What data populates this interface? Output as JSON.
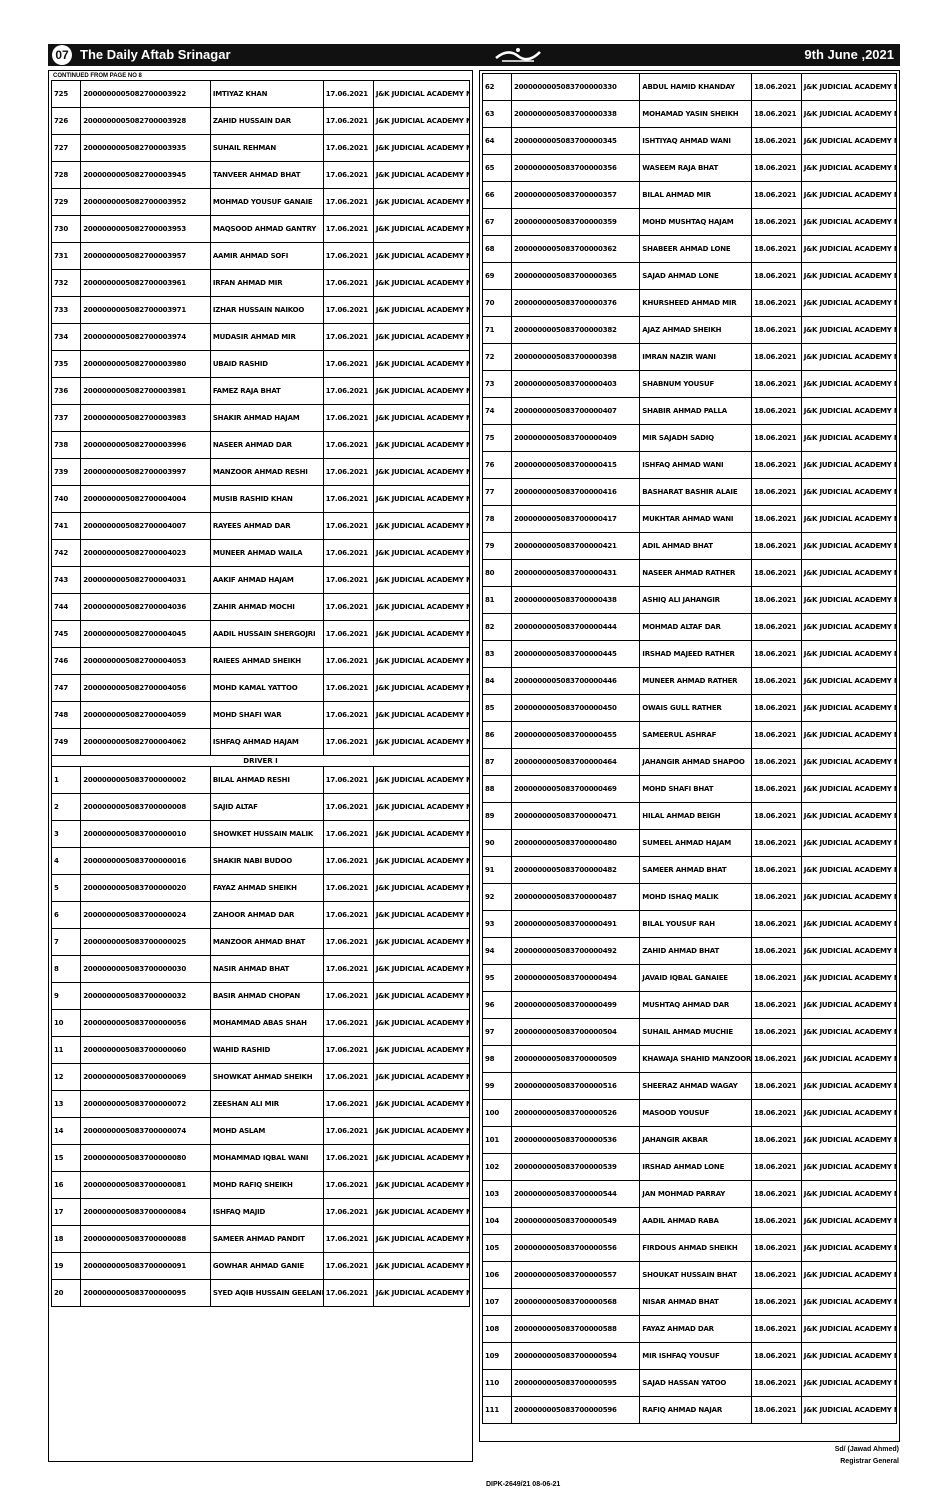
{
  "header": {
    "page_no": "07",
    "paper": "The Daily Aftab Srinagar",
    "date": "9th June ,2021"
  },
  "left": {
    "note": "CONTINUED FROM PAGE NO 8",
    "rows": [
      [
        "725",
        "2000000005082700003922",
        "IMTIYAZ KHAN",
        "17.06.2021",
        "J&K JUDICIAL ACADEMY MOMINABAD, SRINAGAR"
      ],
      [
        "726",
        "2000000005082700003928",
        "ZAHID HUSSAIN DAR",
        "17.06.2021",
        "J&K JUDICIAL ACADEMY MOMINABAD, SRINAGAR"
      ],
      [
        "727",
        "2000000005082700003935",
        "SUHAIL REHMAN",
        "17.06.2021",
        "J&K JUDICIAL ACADEMY MOMINABAD, SRINAGAR"
      ],
      [
        "728",
        "2000000005082700003945",
        "TANVEER AHMAD BHAT",
        "17.06.2021",
        "J&K JUDICIAL ACADEMY MOMINABAD, SRINAGAR"
      ],
      [
        "729",
        "2000000005082700003952",
        "MOHMAD YOUSUF GANAIE",
        "17.06.2021",
        "J&K JUDICIAL ACADEMY MOMINABAD, SRINAGAR"
      ],
      [
        "730",
        "2000000005082700003953",
        "MAQSOOD AHMAD GANTRY",
        "17.06.2021",
        "J&K JUDICIAL ACADEMY MOMINABAD, SRINAGAR"
      ],
      [
        "731",
        "2000000005082700003957",
        "AAMIR AHMAD SOFI",
        "17.06.2021",
        "J&K JUDICIAL ACADEMY MOMINABAD, SRINAGAR"
      ],
      [
        "732",
        "2000000005082700003961",
        "IRFAN AHMAD MIR",
        "17.06.2021",
        "J&K JUDICIAL ACADEMY MOMINABAD, SRINAGAR"
      ],
      [
        "733",
        "2000000005082700003971",
        "IZHAR HUSSAIN NAIKOO",
        "17.06.2021",
        "J&K JUDICIAL ACADEMY MOMINABAD, SRINAGAR"
      ],
      [
        "734",
        "2000000005082700003974",
        "MUDASIR AHMAD MIR",
        "17.06.2021",
        "J&K JUDICIAL ACADEMY MOMINABAD, SRINAGAR"
      ],
      [
        "735",
        "2000000005082700003980",
        "UBAID RASHID",
        "17.06.2021",
        "J&K JUDICIAL ACADEMY MOMINABAD, SRINAGAR"
      ],
      [
        "736",
        "2000000005082700003981",
        "FAMEZ RAJA BHAT",
        "17.06.2021",
        "J&K JUDICIAL ACADEMY MOMINABAD, SRINAGAR"
      ],
      [
        "737",
        "2000000005082700003983",
        "SHAKIR AHMAD HAJAM",
        "17.06.2021",
        "J&K JUDICIAL ACADEMY MOMINABAD, SRINAGAR"
      ],
      [
        "738",
        "2000000005082700003996",
        "NASEER AHMAD DAR",
        "17.06.2021",
        "J&K JUDICIAL ACADEMY MOMINABAD, SRINAGAR"
      ],
      [
        "739",
        "2000000005082700003997",
        "MANZOOR AHMAD RESHI",
        "17.06.2021",
        "J&K JUDICIAL ACADEMY MOMINABAD, SRINAGAR"
      ],
      [
        "740",
        "2000000005082700004004",
        "MUSIB RASHID KHAN",
        "17.06.2021",
        "J&K JUDICIAL ACADEMY MOMINABAD, SRINAGAR"
      ],
      [
        "741",
        "2000000005082700004007",
        "RAYEES AHMAD DAR",
        "17.06.2021",
        "J&K JUDICIAL ACADEMY MOMINABAD, SRINAGAR"
      ],
      [
        "742",
        "2000000005082700004023",
        "MUNEER AHMAD WAILA",
        "17.06.2021",
        "J&K JUDICIAL ACADEMY MOMINABAD, SRINAGAR"
      ],
      [
        "743",
        "2000000005082700004031",
        "AAKIF AHMAD HAJAM",
        "17.06.2021",
        "J&K JUDICIAL ACADEMY MOMINABAD, SRINAGAR"
      ],
      [
        "744",
        "2000000005082700004036",
        "ZAHIR AHMAD MOCHI",
        "17.06.2021",
        "J&K JUDICIAL ACADEMY MOMINABAD, SRINAGAR"
      ],
      [
        "745",
        "2000000005082700004045",
        "AADIL HUSSAIN SHERGOJRI",
        "17.06.2021",
        "J&K JUDICIAL ACADEMY MOMINABAD, SRINAGAR"
      ],
      [
        "746",
        "2000000005082700004053",
        "RAIEES AHMAD SHEIKH",
        "17.06.2021",
        "J&K JUDICIAL ACADEMY MOMINABAD, SRINAGAR"
      ],
      [
        "747",
        "2000000005082700004056",
        "MOHD KAMAL YATTOO",
        "17.06.2021",
        "J&K JUDICIAL ACADEMY MOMINABAD, SRINAGAR"
      ],
      [
        "748",
        "2000000005082700004059",
        "MOHD SHAFI WAR",
        "17.06.2021",
        "J&K JUDICIAL ACADEMY MOMINABAD, SRINAGAR"
      ],
      [
        "749",
        "2000000005082700004062",
        "ISHFAQ AHMAD HAJAM",
        "17.06.2021",
        "J&K JUDICIAL ACADEMY MOMINABAD, SRINAGAR"
      ]
    ],
    "section_title": "DRIVER I",
    "section_rows": [
      [
        "1",
        "2000000005083700000002",
        "BILAL AHMAD RESHI",
        "17.06.2021",
        "J&K JUDICIAL ACADEMY MOMINABAD, SRINAGAR"
      ],
      [
        "2",
        "2000000005083700000008",
        "SAJID ALTAF",
        "17.06.2021",
        "J&K JUDICIAL ACADEMY MOMINABAD, SRINAGAR"
      ],
      [
        "3",
        "2000000005083700000010",
        "SHOWKET HUSSAIN MALIK",
        "17.06.2021",
        "J&K JUDICIAL ACADEMY MOMINABAD, SRINAGAR"
      ],
      [
        "4",
        "2000000005083700000016",
        "SHAKIR NABI BUDOO",
        "17.06.2021",
        "J&K JUDICIAL ACADEMY MOMINABAD, SRINAGAR"
      ],
      [
        "5",
        "2000000005083700000020",
        "FAYAZ AHMAD SHEIKH",
        "17.06.2021",
        "J&K JUDICIAL ACADEMY MOMINABAD, SRINAGAR"
      ],
      [
        "6",
        "2000000005083700000024",
        "ZAHOOR AHMAD DAR",
        "17.06.2021",
        "J&K JUDICIAL ACADEMY MOMINABAD, SRINAGAR"
      ],
      [
        "7",
        "2000000005083700000025",
        "MANZOOR AHMAD BHAT",
        "17.06.2021",
        "J&K JUDICIAL ACADEMY MOMINABAD, SRINAGAR"
      ],
      [
        "8",
        "2000000005083700000030",
        "NASIR AHMAD BHAT",
        "17.06.2021",
        "J&K JUDICIAL ACADEMY MOMINABAD, SRINAGAR"
      ],
      [
        "9",
        "2000000005083700000032",
        "BASIR AHMAD CHOPAN",
        "17.06.2021",
        "J&K JUDICIAL ACADEMY MOMINABAD, SRINAGAR"
      ],
      [
        "10",
        "2000000005083700000056",
        "MOHAMMAD ABAS SHAH",
        "17.06.2021",
        "J&K JUDICIAL ACADEMY MOMINABAD, SRINAGAR"
      ],
      [
        "11",
        "2000000005083700000060",
        "WAHID RASHID",
        "17.06.2021",
        "J&K JUDICIAL ACADEMY MOMINABAD, SRINAGAR"
      ],
      [
        "12",
        "2000000005083700000069",
        "SHOWKAT AHMAD SHEIKH",
        "17.06.2021",
        "J&K JUDICIAL ACADEMY MOMINABAD, SRINAGAR"
      ],
      [
        "13",
        "2000000005083700000072",
        "ZEESHAN ALI MIR",
        "17.06.2021",
        "J&K JUDICIAL ACADEMY MOMINABAD, SRINAGAR"
      ],
      [
        "14",
        "2000000005083700000074",
        "MOHD ASLAM",
        "17.06.2021",
        "J&K JUDICIAL ACADEMY MOMINABAD, SRINAGAR"
      ],
      [
        "15",
        "2000000005083700000080",
        "MOHAMMAD IQBAL WANI",
        "17.06.2021",
        "J&K JUDICIAL ACADEMY MOMINABAD, SRINAGAR"
      ],
      [
        "16",
        "2000000005083700000081",
        "MOHD RAFIQ SHEIKH",
        "17.06.2021",
        "J&K JUDICIAL ACADEMY MOMINABAD, SRINAGAR"
      ],
      [
        "17",
        "2000000005083700000084",
        "ISHFAQ MAJID",
        "17.06.2021",
        "J&K JUDICIAL ACADEMY MOMINABAD, SRINAGAR"
      ],
      [
        "18",
        "2000000005083700000088",
        "SAMEER AHMAD PANDIT",
        "17.06.2021",
        "J&K JUDICIAL ACADEMY MOMINABAD, SRINAGAR"
      ],
      [
        "19",
        "2000000005083700000091",
        "GOWHAR AHMAD GANIE",
        "17.06.2021",
        "J&K JUDICIAL ACADEMY MOMINABAD, SRINAGAR"
      ],
      [
        "20",
        "2000000005083700000095",
        "SYED AQIB HUSSAIN GEELANI",
        "17.06.2021",
        "J&K JUDICIAL ACADEMY MOMINABAD, SRINAGAR"
      ]
    ]
  },
  "right": {
    "rows": [
      [
        "62",
        "2000000005083700000330",
        "ABDUL HAMID KHANDAY",
        "18.06.2021",
        "J&K JUDICIAL ACADEMY MOMINABAD, SRINAGAR"
      ],
      [
        "63",
        "2000000005083700000338",
        "MOHAMAD YASIN SHEIKH",
        "18.06.2021",
        "J&K JUDICIAL ACADEMY MOMINABAD, SRINAGAR"
      ],
      [
        "64",
        "2000000005083700000345",
        "ISHTIYAQ AHMAD WANI",
        "18.06.2021",
        "J&K JUDICIAL ACADEMY MOMINABAD, SRINAGAR"
      ],
      [
        "65",
        "2000000005083700000356",
        "WASEEM RAJA BHAT",
        "18.06.2021",
        "J&K JUDICIAL ACADEMY MOMINABAD, SRINAGAR"
      ],
      [
        "66",
        "2000000005083700000357",
        "BILAL AHMAD MIR",
        "18.06.2021",
        "J&K JUDICIAL ACADEMY MOMINABAD, SRINAGAR"
      ],
      [
        "67",
        "2000000005083700000359",
        "MOHD MUSHTAQ HAJAM",
        "18.06.2021",
        "J&K JUDICIAL ACADEMY MOMINABAD, SRINAGAR"
      ],
      [
        "68",
        "2000000005083700000362",
        "SHABEER AHMAD LONE",
        "18.06.2021",
        "J&K JUDICIAL ACADEMY MOMINABAD, SRINAGAR"
      ],
      [
        "69",
        "2000000005083700000365",
        "SAJAD AHMAD LONE",
        "18.06.2021",
        "J&K JUDICIAL ACADEMY MOMINABAD, SRINAGAR"
      ],
      [
        "70",
        "2000000005083700000376",
        "KHURSHEED AHMAD MIR",
        "18.06.2021",
        "J&K JUDICIAL ACADEMY MOMINABAD, SRINAGAR"
      ],
      [
        "71",
        "2000000005083700000382",
        "AJAZ AHMAD SHEIKH",
        "18.06.2021",
        "J&K JUDICIAL ACADEMY MOMINABAD, SRINAGAR"
      ],
      [
        "72",
        "2000000005083700000398",
        "IMRAN NAZIR WANI",
        "18.06.2021",
        "J&K JUDICIAL ACADEMY MOMINABAD, SRINAGAR"
      ],
      [
        "73",
        "2000000005083700000403",
        "SHABNUM YOUSUF",
        "18.06.2021",
        "J&K JUDICIAL ACADEMY MOMINABAD, SRINAGAR"
      ],
      [
        "74",
        "2000000005083700000407",
        "SHABIR AHMAD PALLA",
        "18.06.2021",
        "J&K JUDICIAL ACADEMY MOMINABAD, SRINAGAR"
      ],
      [
        "75",
        "2000000005083700000409",
        "MIR SAJADH SADIQ",
        "18.06.2021",
        "J&K JUDICIAL ACADEMY MOMINABAD, SRINAGAR"
      ],
      [
        "76",
        "2000000005083700000415",
        "ISHFAQ AHMAD WANI",
        "18.06.2021",
        "J&K JUDICIAL ACADEMY MOMINABAD, SRINAGAR"
      ],
      [
        "77",
        "2000000005083700000416",
        "BASHARAT BASHIR ALAIE",
        "18.06.2021",
        "J&K JUDICIAL ACADEMY MOMINABAD, SRINAGAR"
      ],
      [
        "78",
        "2000000005083700000417",
        "MUKHTAR AHMAD WANI",
        "18.06.2021",
        "J&K JUDICIAL ACADEMY MOMINABAD, SRINAGAR"
      ],
      [
        "79",
        "2000000005083700000421",
        "ADIL AHMAD BHAT",
        "18.06.2021",
        "J&K JUDICIAL ACADEMY MOMINABAD, SRINAGAR"
      ],
      [
        "80",
        "2000000005083700000431",
        "NASEER AHMAD RATHER",
        "18.06.2021",
        "J&K JUDICIAL ACADEMY MOMINABAD, SRINAGAR"
      ],
      [
        "81",
        "2000000005083700000438",
        "ASHIQ ALI JAHANGIR",
        "18.06.2021",
        "J&K JUDICIAL ACADEMY MOMINABAD, SRINAGAR"
      ],
      [
        "82",
        "2000000005083700000444",
        "MOHMAD ALTAF DAR",
        "18.06.2021",
        "J&K JUDICIAL ACADEMY MOMINABAD, SRINAGAR"
      ],
      [
        "83",
        "2000000005083700000445",
        "IRSHAD MAJEED RATHER",
        "18.06.2021",
        "J&K JUDICIAL ACADEMY MOMINABAD, SRINAGAR"
      ],
      [
        "84",
        "2000000005083700000446",
        "MUNEER AHMAD RATHER",
        "18.06.2021",
        "J&K JUDICIAL ACADEMY MOMINABAD, SRINAGAR"
      ],
      [
        "85",
        "2000000005083700000450",
        "OWAIS GULL RATHER",
        "18.06.2021",
        "J&K JUDICIAL ACADEMY MOMINABAD, SRINAGAR"
      ],
      [
        "86",
        "2000000005083700000455",
        "SAMEERUL ASHRAF",
        "18.06.2021",
        "J&K JUDICIAL ACADEMY MOMINABAD, SRINAGAR"
      ],
      [
        "87",
        "2000000005083700000464",
        "JAHANGIR AHMAD SHAPOO",
        "18.06.2021",
        "J&K JUDICIAL ACADEMY MOMINABAD, SRINAGAR"
      ],
      [
        "88",
        "2000000005083700000469",
        "MOHD SHAFI BHAT",
        "18.06.2021",
        "J&K JUDICIAL ACADEMY MOMINABAD, SRINAGAR"
      ],
      [
        "89",
        "2000000005083700000471",
        "HILAL AHMAD BEIGH",
        "18.06.2021",
        "J&K JUDICIAL ACADEMY MOMINABAD, SRINAGAR"
      ],
      [
        "90",
        "2000000005083700000480",
        "SUMEEL AHMAD HAJAM",
        "18.06.2021",
        "J&K JUDICIAL ACADEMY MOMINABAD, SRINAGAR"
      ],
      [
        "91",
        "2000000005083700000482",
        "SAMEER AHMAD BHAT",
        "18.06.2021",
        "J&K JUDICIAL ACADEMY MOMINABAD, SRINAGAR"
      ],
      [
        "92",
        "2000000005083700000487",
        "MOHD ISHAQ MALIK",
        "18.06.2021",
        "J&K JUDICIAL ACADEMY MOMINABAD, SRINAGAR"
      ],
      [
        "93",
        "2000000005083700000491",
        "BILAL YOUSUF RAH",
        "18.06.2021",
        "J&K JUDICIAL ACADEMY MOMINABAD, SRINAGAR"
      ],
      [
        "94",
        "2000000005083700000492",
        "ZAHID AHMAD BHAT",
        "18.06.2021",
        "J&K JUDICIAL ACADEMY MOMINABAD, SRINAGAR"
      ],
      [
        "95",
        "2000000005083700000494",
        "JAVAID IQBAL GANAIEE",
        "18.06.2021",
        "J&K JUDICIAL ACADEMY MOMINABAD, SRINAGAR"
      ],
      [
        "96",
        "2000000005083700000499",
        "MUSHTAQ AHMAD DAR",
        "18.06.2021",
        "J&K JUDICIAL ACADEMY MOMINABAD, SRINAGAR"
      ],
      [
        "97",
        "2000000005083700000504",
        "SUHAIL AHMAD MUCHIE",
        "18.06.2021",
        "J&K JUDICIAL ACADEMY MOMINABAD, SRINAGAR"
      ],
      [
        "98",
        "2000000005083700000509",
        "KHAWAJA SHAHID MANZOOR",
        "18.06.2021",
        "J&K JUDICIAL ACADEMY MOMINABAD, SRINAGAR"
      ],
      [
        "99",
        "2000000005083700000516",
        "SHEERAZ AHMAD WAGAY",
        "18.06.2021",
        "J&K JUDICIAL ACADEMY MOMINABAD, SRINAGAR"
      ],
      [
        "100",
        "2000000005083700000526",
        "MASOOD YOUSUF",
        "18.06.2021",
        "J&K JUDICIAL ACADEMY MOMINABAD, SRINAGAR"
      ],
      [
        "101",
        "2000000005083700000536",
        "JAHANGIR AKBAR",
        "18.06.2021",
        "J&K JUDICIAL ACADEMY MOMINABAD, SRINAGAR"
      ],
      [
        "102",
        "2000000005083700000539",
        "IRSHAD AHMAD LONE",
        "18.06.2021",
        "J&K JUDICIAL ACADEMY MOMINABAD, SRINAGAR"
      ],
      [
        "103",
        "2000000005083700000544",
        "JAN MOHMAD PARRAY",
        "18.06.2021",
        "J&K JUDICIAL ACADEMY MOMINABAD, SRINAGAR"
      ],
      [
        "104",
        "2000000005083700000549",
        "AADIL AHMAD RABA",
        "18.06.2021",
        "J&K JUDICIAL ACADEMY MOMINABAD, SRINAGAR"
      ],
      [
        "105",
        "2000000005083700000556",
        "FIRDOUS AHMAD SHEIKH",
        "18.06.2021",
        "J&K JUDICIAL ACADEMY MOMINABAD, SRINAGAR"
      ],
      [
        "106",
        "2000000005083700000557",
        "SHOUKAT HUSSAIN BHAT",
        "18.06.2021",
        "J&K JUDICIAL ACADEMY MOMINABAD, SRINAGAR"
      ],
      [
        "107",
        "2000000005083700000568",
        "NISAR AHMAD BHAT",
        "18.06.2021",
        "J&K JUDICIAL ACADEMY MOMINABAD, SRINAGAR"
      ],
      [
        "108",
        "2000000005083700000588",
        "FAYAZ AHMAD DAR",
        "18.06.2021",
        "J&K JUDICIAL ACADEMY MOMINABAD, SRINAGAR"
      ],
      [
        "109",
        "2000000005083700000594",
        "MIR ISHFAQ YOUSUF",
        "18.06.2021",
        "J&K JUDICIAL ACADEMY MOMINABAD, SRINAGAR"
      ],
      [
        "110",
        "2000000005083700000595",
        "SAJAD HASSAN YATOO",
        "18.06.2021",
        "J&K JUDICIAL ACADEMY MOMINABAD, SRINAGAR"
      ],
      [
        "111",
        "2000000005083700000596",
        "RAFIQ AHMAD NAJAR",
        "18.06.2021",
        "J&K JUDICIAL ACADEMY MOMINABAD, SRINAGAR"
      ]
    ]
  },
  "footer": {
    "ref": "DIPK-2649/21   08-06-21",
    "signature": "Sd/ (Jawad Ahmed)",
    "designation": "Registrar General"
  }
}
